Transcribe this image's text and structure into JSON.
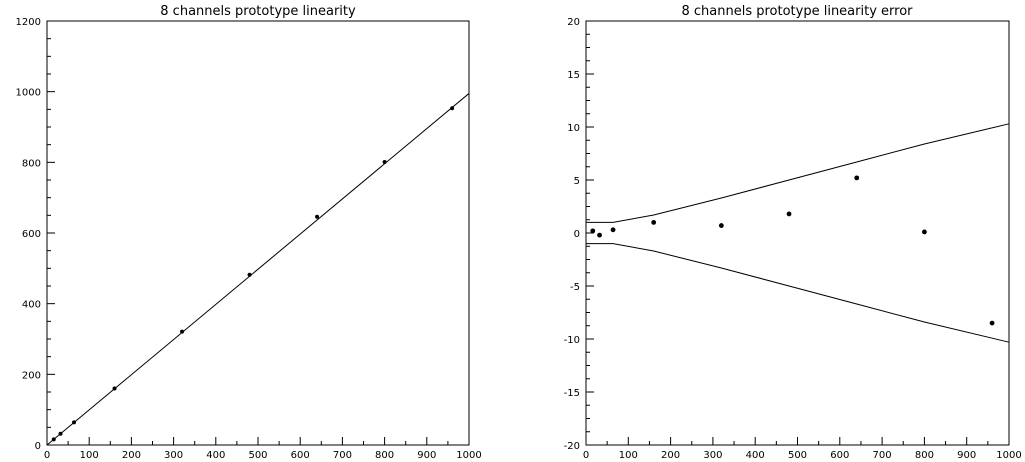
{
  "chart_data": [
    {
      "type": "scatter",
      "title": "8 channels prototype linearity",
      "xlabel": "",
      "ylabel": "",
      "xlim": [
        0,
        1000
      ],
      "ylim": [
        0,
        1200
      ],
      "x_ticks": [
        "0",
        "100",
        "200",
        "300",
        "400",
        "500",
        "600",
        "700",
        "800",
        "900",
        "1000"
      ],
      "y_ticks": [
        "0",
        "200",
        "400",
        "600",
        "800",
        "1000",
        "1200"
      ],
      "points": [
        {
          "x": 16,
          "y": 16
        },
        {
          "x": 32,
          "y": 32
        },
        {
          "x": 64,
          "y": 64
        },
        {
          "x": 160,
          "y": 160
        },
        {
          "x": 320,
          "y": 321
        },
        {
          "x": 480,
          "y": 482
        },
        {
          "x": 640,
          "y": 646
        },
        {
          "x": 800,
          "y": 801
        },
        {
          "x": 960,
          "y": 953
        }
      ],
      "fit_line": [
        {
          "x": 0,
          "y": 0
        },
        {
          "x": 1000,
          "y": 995
        }
      ]
    },
    {
      "type": "scatter",
      "title": "8 channels prototype linearity error",
      "xlabel": "",
      "ylabel": "",
      "xlim": [
        0,
        1000
      ],
      "ylim": [
        -20,
        20
      ],
      "x_ticks": [
        "0",
        "100",
        "200",
        "300",
        "400",
        "500",
        "600",
        "700",
        "800",
        "900",
        "1000"
      ],
      "y_ticks": [
        "-20",
        "-15",
        "-10",
        "-5",
        "0",
        "5",
        "10",
        "15",
        "20"
      ],
      "points": [
        {
          "x": 16,
          "y": 0.2
        },
        {
          "x": 32,
          "y": -0.2
        },
        {
          "x": 64,
          "y": 0.3
        },
        {
          "x": 160,
          "y": 1.0
        },
        {
          "x": 320,
          "y": 0.7
        },
        {
          "x": 480,
          "y": 1.8
        },
        {
          "x": 640,
          "y": 5.2
        },
        {
          "x": 800,
          "y": 0.1
        },
        {
          "x": 960,
          "y": -8.5
        }
      ],
      "upper_bound": [
        {
          "x": 0,
          "y": 1.0
        },
        {
          "x": 64,
          "y": 1.0
        },
        {
          "x": 160,
          "y": 1.7
        },
        {
          "x": 320,
          "y": 3.3
        },
        {
          "x": 480,
          "y": 5.0
        },
        {
          "x": 640,
          "y": 6.7
        },
        {
          "x": 800,
          "y": 8.4
        },
        {
          "x": 1000,
          "y": 10.3
        }
      ],
      "lower_bound": [
        {
          "x": 0,
          "y": -1.0
        },
        {
          "x": 64,
          "y": -1.0
        },
        {
          "x": 160,
          "y": -1.7
        },
        {
          "x": 320,
          "y": -3.3
        },
        {
          "x": 480,
          "y": -5.0
        },
        {
          "x": 640,
          "y": -6.7
        },
        {
          "x": 800,
          "y": -8.4
        },
        {
          "x": 1000,
          "y": -10.3
        }
      ]
    }
  ]
}
